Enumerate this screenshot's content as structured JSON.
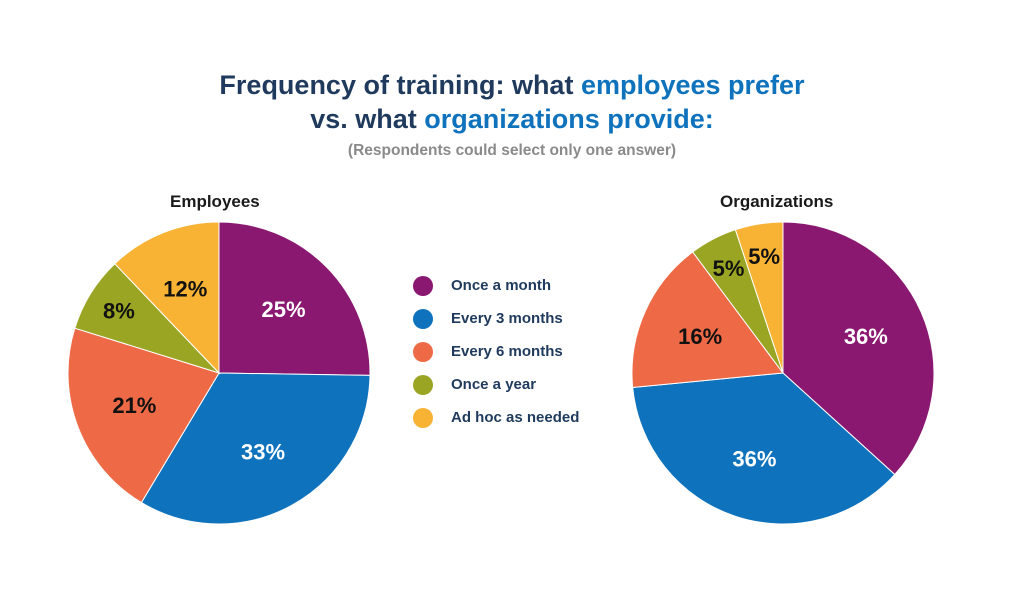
{
  "title": {
    "line1_part1": "Frequency of training: what ",
    "line1_part2": "employees prefer",
    "line2_part1": "vs. what ",
    "line2_part2": "organizations provide:",
    "subtitle": "(Respondents could select only one answer)"
  },
  "colors": {
    "title": "#1f3a5c",
    "accent": "#0f72bc"
  },
  "chart_data": [
    {
      "type": "pie",
      "title": "Employees",
      "categories": [
        "Once a month",
        "Every 3 months",
        "Every 6 months",
        "Once a year",
        "Ad hoc as needed"
      ],
      "values": [
        25,
        33,
        21,
        8,
        12
      ],
      "labels": [
        "25%",
        "33%",
        "21%",
        "8%",
        "12%"
      ],
      "colors": [
        "#8a1770",
        "#0f72bc",
        "#ee6a46",
        "#9aa623",
        "#f8b334"
      ],
      "label_colors": [
        "#ffffff",
        "#ffffff",
        "#111111",
        "#111111",
        "#111111"
      ]
    },
    {
      "type": "pie",
      "title": "Organizations",
      "categories": [
        "Once a month",
        "Every 3 months",
        "Every 6 months",
        "Once a year",
        "Ad hoc as needed"
      ],
      "values": [
        36,
        36,
        16,
        5,
        5
      ],
      "labels": [
        "36%",
        "36%",
        "16%",
        "5%",
        "5%"
      ],
      "colors": [
        "#8a1770",
        "#0f72bc",
        "#ee6a46",
        "#9aa623",
        "#f8b334"
      ],
      "label_colors": [
        "#ffffff",
        "#ffffff",
        "#111111",
        "#111111",
        "#111111"
      ]
    }
  ],
  "legend": [
    {
      "label": "Once a month",
      "color": "#8a1770"
    },
    {
      "label": "Every 3 months",
      "color": "#0f72bc"
    },
    {
      "label": "Every 6 months",
      "color": "#ee6a46"
    },
    {
      "label": "Once a year",
      "color": "#9aa623"
    },
    {
      "label": "Ad hoc as needed",
      "color": "#f8b334"
    }
  ]
}
